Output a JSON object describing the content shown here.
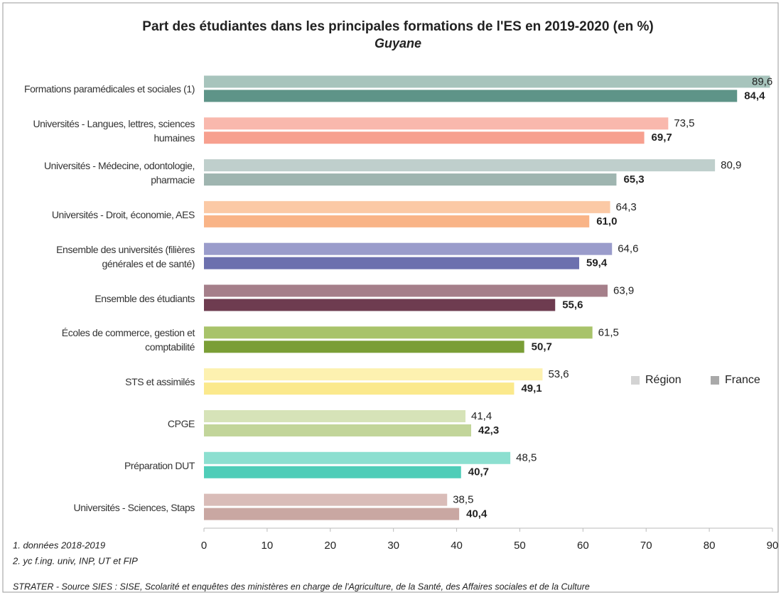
{
  "chart_data": {
    "type": "hbar",
    "title": "Part des étudiantes dans les principales formations de l'ES en 2019-2020 (en %)",
    "subtitle": "Guyane",
    "categories": [
      "Formations paramédicales et sociales (1)",
      "Universités - Langues, lettres, sciences humaines",
      "Universités - Médecine, odontologie, pharmacie",
      "Universités - Droit, économie, AES",
      "Ensemble des universités (filières générales et de santé)",
      "Ensemble des étudiants",
      "Écoles de commerce, gestion et comptabilité",
      "STS et assimilés",
      "CPGE",
      "Préparation DUT",
      "Universités - Sciences, Staps"
    ],
    "series": [
      {
        "name": "Région",
        "color": "#d3d3d3",
        "colors": [
          "#a7c4bc",
          "#f9b8ad",
          "#bfcfcc",
          "#fbc9a5",
          "#9a9ccb",
          "#a57f8a",
          "#a8c36a",
          "#fdf1b0",
          "#d6e3b8",
          "#8cdfd0",
          "#d9bcb8"
        ],
        "values": [
          89.6,
          73.5,
          80.9,
          64.3,
          64.6,
          63.9,
          61.5,
          53.6,
          41.4,
          48.5,
          38.5
        ],
        "value_labels": [
          "89,6",
          "73,5",
          "80,9",
          "64,3",
          "64,6",
          "63,9",
          "61,5",
          "53,6",
          "41,4",
          "48,5",
          "38,5"
        ]
      },
      {
        "name": "France",
        "color": "#a9a9a9",
        "colors": [
          "#5e9488",
          "#f7a08f",
          "#9fb5b0",
          "#f9b487",
          "#6c70ae",
          "#6e3c50",
          "#7a9e36",
          "#fbe98c",
          "#c2d59a",
          "#4fcdb8",
          "#c9a7a2"
        ],
        "values": [
          84.4,
          69.7,
          65.3,
          61.0,
          59.4,
          55.6,
          50.7,
          49.1,
          42.3,
          40.7,
          40.4
        ],
        "value_labels": [
          "84,4",
          "69,7",
          "65,3",
          "61,0",
          "59,4",
          "55,6",
          "50,7",
          "49,1",
          "42,3",
          "40,7",
          "40,4"
        ]
      }
    ],
    "xlim": [
      0,
      90
    ],
    "xticks": [
      0,
      10,
      20,
      30,
      40,
      50,
      60,
      70,
      80,
      90
    ],
    "legend": "right",
    "notes": [
      "1. données 2018-2019",
      "2. yc f.ing. univ, INP, UT et FIP"
    ],
    "source": "STRATER - Source SIES : SISE, Scolarité et enquêtes des ministères en charge de l'Agriculture, de la Santé, des Affaires sociales et de la Culture"
  }
}
